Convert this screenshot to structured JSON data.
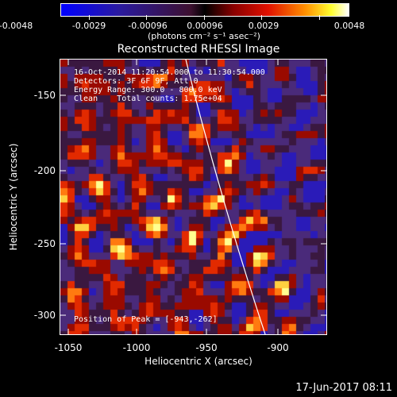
{
  "colorbar": {
    "tick_labels": [
      "-0.0048",
      "-0.0029",
      "-0.00096",
      "0.00096",
      "0.0029",
      "0.0048"
    ],
    "unit_label": "(photons cm⁻² s⁻¹ asec⁻²)"
  },
  "title": "Reconstructed RHESSI Image",
  "annotations": {
    "time": "16-Oct-2014 11:20:54.000 to 11:30:54.000",
    "detectors": "Detectors: 3F 6F 9F, Att 0",
    "energy": "Energy Range: 300.0 - 800.0 keV",
    "clean": "Clean    Total counts: 1.75e+04"
  },
  "peak_label": "Position of Peak = [-943,-262]",
  "axes": {
    "xlabel": "Heliocentric X (arcsec)",
    "ylabel": "Heliocentric Y (arcsec)",
    "x_ticks": [
      "-1050",
      "-1000",
      "-950",
      "-900"
    ],
    "y_ticks": [
      "-150",
      "-200",
      "-250",
      "-300"
    ]
  },
  "footer_date": "17-Jun-2017 08:11"
}
